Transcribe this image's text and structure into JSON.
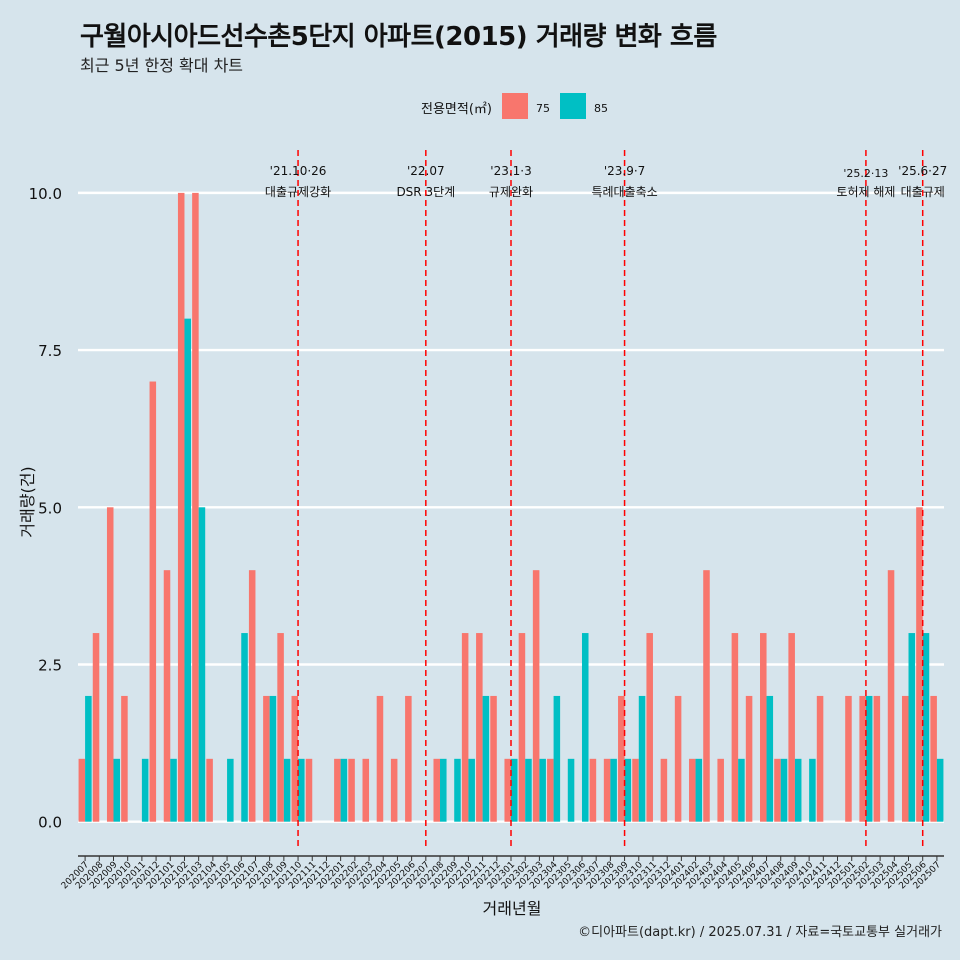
{
  "title": "구월아시아드선수촌5단지 아파트(2015) 거래량 변화 흐름",
  "subtitle": "최근 5년 한정 확대 차트",
  "credit": "©디아파트(dapt.kr) / 2025.07.31 / 자료=국토교통부 실거래가",
  "colors": {
    "s75": "#f8766d",
    "s85": "#00bfc4",
    "event": "#ff0000",
    "grid": "#ffffff"
  },
  "chart_data": {
    "type": "bar",
    "title": "구월아시아드선수촌5단지 아파트(2015) 거래량 변화 흐름",
    "xlabel": "거래년월",
    "ylabel": "거래량(건)",
    "ylim": [
      -0.45,
      11
    ],
    "yticks": [
      "0.0",
      "2.5",
      "5.0",
      "7.5",
      "10.0"
    ],
    "legend": {
      "title": "전용면적(㎡)",
      "position": "top"
    },
    "categories": [
      "202007",
      "202008",
      "202009",
      "202010",
      "202011",
      "202012",
      "202101",
      "202102",
      "202103",
      "202104",
      "202105",
      "202106",
      "202107",
      "202108",
      "202109",
      "202110",
      "202111",
      "202112",
      "202201",
      "202202",
      "202203",
      "202204",
      "202205",
      "202206",
      "202207",
      "202208",
      "202209",
      "202210",
      "202211",
      "202212",
      "202301",
      "202302",
      "202303",
      "202304",
      "202305",
      "202306",
      "202307",
      "202308",
      "202309",
      "202310",
      "202311",
      "202312",
      "202401",
      "202402",
      "202403",
      "202404",
      "202405",
      "202406",
      "202407",
      "202408",
      "202409",
      "202410",
      "202411",
      "202412",
      "202501",
      "202502",
      "202503",
      "202504",
      "202505",
      "202506",
      "202507"
    ],
    "series": [
      {
        "name": "75",
        "values": [
          1,
          3,
          5,
          2,
          0,
          7,
          4,
          10,
          10,
          1,
          0,
          0,
          4,
          2,
          3,
          2,
          1,
          0,
          1,
          1,
          1,
          2,
          1,
          2,
          0,
          1,
          0,
          3,
          3,
          2,
          1,
          3,
          4,
          1,
          0,
          0,
          1,
          1,
          2,
          1,
          3,
          1,
          2,
          1,
          4,
          1,
          3,
          2,
          3,
          1,
          3,
          0,
          2,
          0,
          2,
          2,
          2,
          4,
          2,
          5,
          2
        ]
      },
      {
        "name": "85",
        "values": [
          2,
          0,
          1,
          0,
          1,
          0,
          1,
          8,
          5,
          0,
          1,
          3,
          0,
          2,
          1,
          1,
          0,
          0,
          1,
          0,
          0,
          0,
          0,
          0,
          0,
          1,
          1,
          1,
          2,
          0,
          1,
          1,
          1,
          2,
          1,
          3,
          0,
          1,
          1,
          2,
          0,
          0,
          0,
          1,
          0,
          0,
          1,
          0,
          2,
          1,
          1,
          1,
          0,
          0,
          0,
          2,
          0,
          0,
          3,
          3,
          1
        ]
      }
    ],
    "events": [
      {
        "date": "'21.10·26",
        "label": "대출규제강화",
        "month": "202110"
      },
      {
        "date": "'22.07",
        "label": "DSR 3단계",
        "month": "202207"
      },
      {
        "date": "'23.1·3",
        "label": "규제완화",
        "month": "202301"
      },
      {
        "date": "'23.9·7",
        "label": "특례대출축소",
        "month": "202309"
      },
      {
        "date": "'25.2·13",
        "label": "토허제 해제",
        "month": "202502"
      },
      {
        "date": "'25.6·27",
        "label": "대출규제",
        "month": "202506"
      }
    ]
  }
}
